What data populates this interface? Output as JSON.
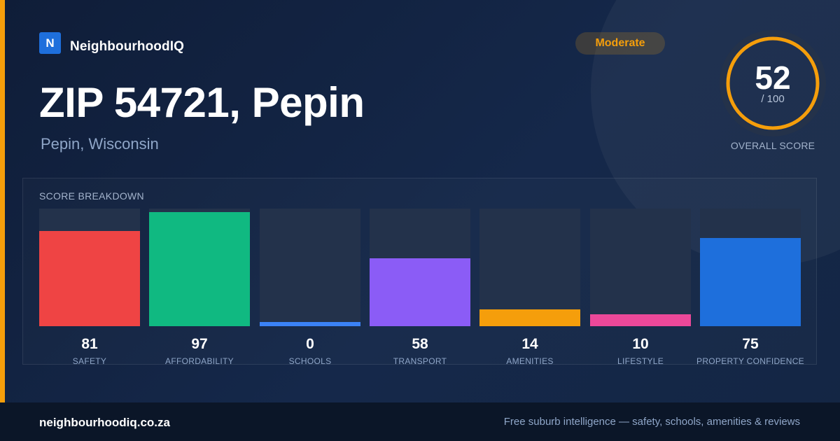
{
  "brand": {
    "logo_letter": "N",
    "name": "NeighbourhoodIQ",
    "logo_color": "#1e6fdc"
  },
  "badge": {
    "label": "Moderate",
    "color": "#f59e0b"
  },
  "header": {
    "title": "ZIP 54721, Pepin",
    "subtitle": "Pepin, Wisconsin"
  },
  "overall": {
    "score": "52",
    "max": "/ 100",
    "caption": "OVERALL SCORE",
    "ring_color": "#f59e0b",
    "ring_track_color": "#24324a"
  },
  "accent_color": "#f59e0b",
  "breakdown": {
    "title": "SCORE BREAKDOWN"
  },
  "chart_data": {
    "type": "bar",
    "title": "SCORE BREAKDOWN",
    "categories": [
      "SAFETY",
      "AFFORDABILITY",
      "SCHOOLS",
      "TRANSPORT",
      "AMENITIES",
      "LIFESTYLE",
      "PROPERTY CONFIDENCE"
    ],
    "values": [
      81,
      97,
      0,
      58,
      14,
      10,
      75
    ],
    "colors": [
      "#ef4444",
      "#10b981",
      "#3b82f6",
      "#8b5cf6",
      "#f59e0b",
      "#ec4899",
      "#1e6fdc"
    ],
    "ylim": [
      0,
      100
    ],
    "grid": false
  },
  "footer": {
    "url": "neighbourhoodiq.co.za",
    "tagline": "Free suburb intelligence — safety, schools, amenities & reviews"
  }
}
